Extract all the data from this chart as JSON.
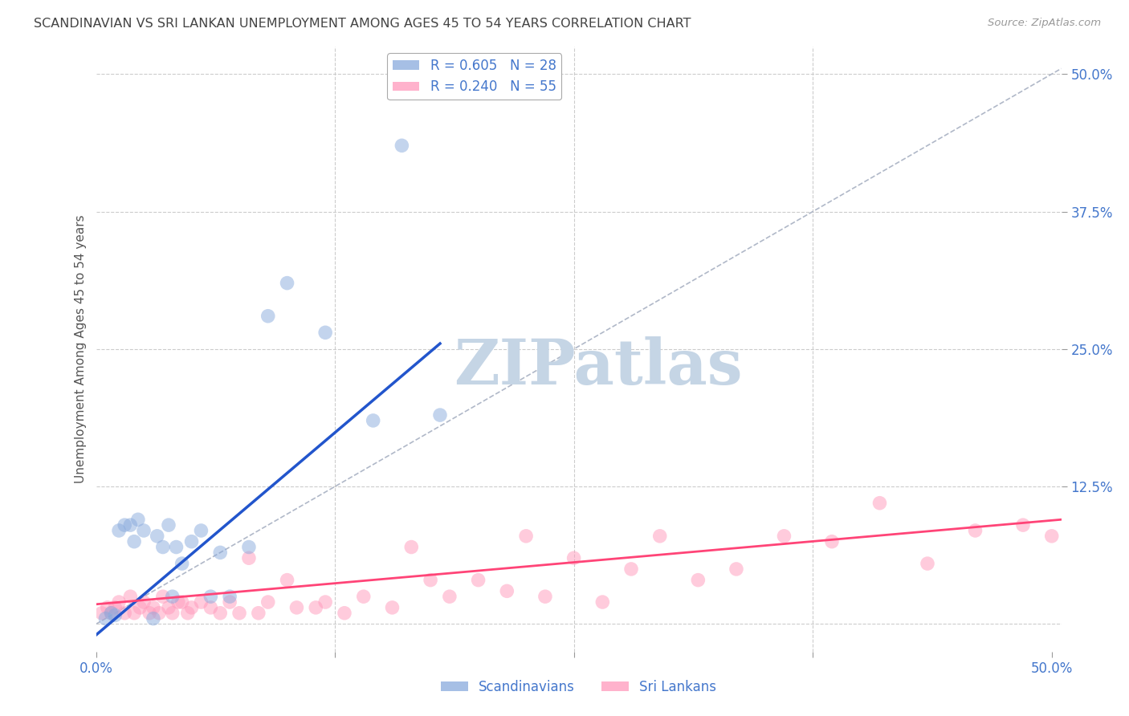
{
  "title": "SCANDINAVIAN VS SRI LANKAN UNEMPLOYMENT AMONG AGES 45 TO 54 YEARS CORRELATION CHART",
  "source": "Source: ZipAtlas.com",
  "ylabel": "Unemployment Among Ages 45 to 54 years",
  "xlim": [
    0.0,
    0.505
  ],
  "ylim": [
    -0.025,
    0.525
  ],
  "scand_R": 0.605,
  "scand_N": 28,
  "srilanka_R": 0.24,
  "srilanka_N": 55,
  "scand_color": "#88aadd",
  "srilanka_color": "#ff99bb",
  "scand_line_color": "#2255cc",
  "srilanka_line_color": "#ff4477",
  "diagonal_color": "#b0b8c8",
  "watermark_text": "ZIPatlas",
  "watermark_color": "#c5d5e5",
  "scand_x": [
    0.005,
    0.008,
    0.01,
    0.012,
    0.015,
    0.018,
    0.02,
    0.022,
    0.025,
    0.03,
    0.032,
    0.035,
    0.038,
    0.04,
    0.042,
    0.045,
    0.05,
    0.055,
    0.06,
    0.065,
    0.07,
    0.08,
    0.09,
    0.1,
    0.12,
    0.145,
    0.16,
    0.18
  ],
  "scand_y": [
    0.005,
    0.01,
    0.008,
    0.085,
    0.09,
    0.09,
    0.075,
    0.095,
    0.085,
    0.005,
    0.08,
    0.07,
    0.09,
    0.025,
    0.07,
    0.055,
    0.075,
    0.085,
    0.025,
    0.065,
    0.025,
    0.07,
    0.28,
    0.31,
    0.265,
    0.185,
    0.435,
    0.19
  ],
  "srilanka_x": [
    0.003,
    0.006,
    0.008,
    0.01,
    0.012,
    0.015,
    0.018,
    0.02,
    0.023,
    0.025,
    0.028,
    0.03,
    0.033,
    0.035,
    0.038,
    0.04,
    0.043,
    0.045,
    0.048,
    0.05,
    0.055,
    0.06,
    0.065,
    0.07,
    0.075,
    0.08,
    0.085,
    0.09,
    0.1,
    0.105,
    0.115,
    0.12,
    0.13,
    0.14,
    0.155,
    0.165,
    0.175,
    0.185,
    0.2,
    0.215,
    0.225,
    0.235,
    0.25,
    0.265,
    0.28,
    0.295,
    0.315,
    0.335,
    0.36,
    0.385,
    0.41,
    0.435,
    0.46,
    0.485,
    0.5
  ],
  "srilanka_y": [
    0.01,
    0.015,
    0.01,
    0.015,
    0.02,
    0.01,
    0.025,
    0.01,
    0.015,
    0.02,
    0.01,
    0.015,
    0.01,
    0.025,
    0.015,
    0.01,
    0.02,
    0.02,
    0.01,
    0.015,
    0.02,
    0.015,
    0.01,
    0.02,
    0.01,
    0.06,
    0.01,
    0.02,
    0.04,
    0.015,
    0.015,
    0.02,
    0.01,
    0.025,
    0.015,
    0.07,
    0.04,
    0.025,
    0.04,
    0.03,
    0.08,
    0.025,
    0.06,
    0.02,
    0.05,
    0.08,
    0.04,
    0.05,
    0.08,
    0.075,
    0.11,
    0.055,
    0.085,
    0.09,
    0.08
  ],
  "scand_trend_x": [
    0.0,
    0.18
  ],
  "scand_trend_y": [
    -0.01,
    0.255
  ],
  "srilanka_trend_x": [
    0.0,
    0.505
  ],
  "srilanka_trend_y": [
    0.018,
    0.095
  ],
  "background_color": "#ffffff",
  "grid_color": "#cccccc",
  "title_color": "#444444",
  "axis_label_color": "#555555",
  "tick_label_color": "#4477cc",
  "ytick_right_labels": [
    "12.5%",
    "25.0%",
    "37.5%",
    "50.0%"
  ],
  "ytick_right_pos": [
    0.125,
    0.25,
    0.375,
    0.5
  ],
  "xtick_labels": [
    "0.0%",
    "50.0%"
  ],
  "xtick_pos": [
    0.0,
    0.5
  ]
}
